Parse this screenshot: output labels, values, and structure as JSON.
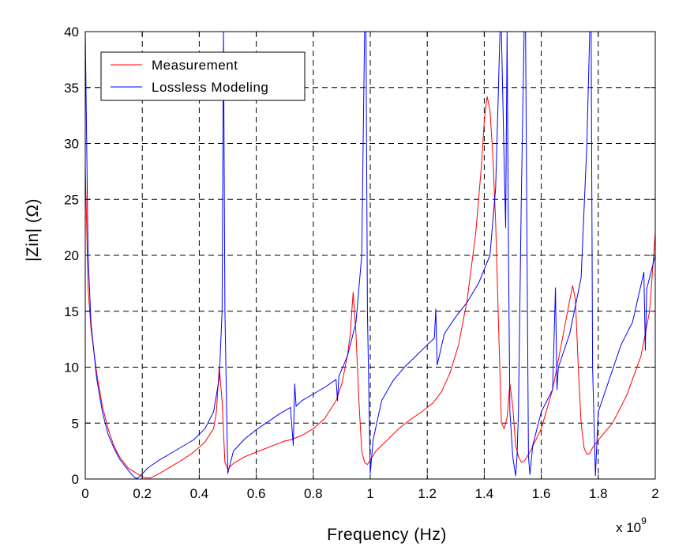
{
  "chart_data": {
    "type": "line",
    "title": "",
    "xlabel": "Frequency (Hz)",
    "ylabel": "|Zin| (Ω)",
    "x_multiplier_label": "x 10",
    "x_multiplier_exponent": "9",
    "xlim": [
      0,
      2
    ],
    "ylim": [
      0,
      40
    ],
    "x_ticks": [
      0,
      0.2,
      0.4,
      0.6,
      0.8,
      1,
      1.2,
      1.4,
      1.6,
      1.8,
      2
    ],
    "x_tick_labels": [
      "0",
      "0.2",
      "0.4",
      "0.6",
      "0.8",
      "1",
      "1.2",
      "1.4",
      "1.6",
      "1.8",
      "2"
    ],
    "y_ticks": [
      0,
      5,
      10,
      15,
      20,
      25,
      30,
      35,
      40
    ],
    "y_tick_labels": [
      "0",
      "5",
      "10",
      "15",
      "20",
      "25",
      "30",
      "35",
      "40"
    ],
    "grid": true,
    "legend_position": "top-left",
    "series": [
      {
        "name": "Measurement",
        "color": "#ff0000",
        "x": [
          0.0,
          0.01,
          0.02,
          0.04,
          0.06,
          0.08,
          0.1,
          0.12,
          0.15,
          0.18,
          0.21,
          0.23,
          0.26,
          0.3,
          0.34,
          0.38,
          0.42,
          0.45,
          0.46,
          0.47,
          0.48,
          0.49,
          0.5,
          0.52,
          0.56,
          0.6,
          0.64,
          0.68,
          0.7,
          0.72,
          0.76,
          0.8,
          0.84,
          0.88,
          0.9,
          0.92,
          0.93,
          0.94,
          0.95,
          0.96,
          0.97,
          0.98,
          0.99,
          1.0,
          1.02,
          1.06,
          1.1,
          1.14,
          1.18,
          1.2,
          1.22,
          1.25,
          1.28,
          1.31,
          1.34,
          1.37,
          1.39,
          1.4,
          1.41,
          1.42,
          1.43,
          1.44,
          1.45,
          1.46,
          1.47,
          1.48,
          1.49,
          1.5,
          1.51,
          1.52,
          1.53,
          1.54,
          1.56,
          1.6,
          1.64,
          1.67,
          1.7,
          1.71,
          1.72,
          1.73,
          1.74,
          1.75,
          1.76,
          1.77,
          1.78,
          1.8,
          1.85,
          1.9,
          1.95,
          1.98,
          2.0
        ],
        "values": [
          28,
          17,
          13.5,
          9.5,
          6.5,
          4.5,
          3,
          2,
          1,
          0.5,
          0.1,
          0.1,
          0.5,
          1.1,
          1.7,
          2.4,
          3.3,
          4.5,
          6,
          10,
          7,
          1.5,
          0.9,
          1.4,
          2,
          2.4,
          2.8,
          3.2,
          3.4,
          3.5,
          3.9,
          4.5,
          5.4,
          7,
          8.5,
          11,
          13,
          16.7,
          13,
          7,
          2.5,
          1.5,
          1.3,
          1.7,
          2.5,
          3.5,
          4.5,
          5.3,
          6,
          6.4,
          6.8,
          7.8,
          9.5,
          12,
          16,
          22,
          28,
          32,
          34.2,
          33,
          29,
          23,
          14,
          5,
          4.5,
          5.5,
          8.5,
          6.5,
          3,
          2,
          1.5,
          1.6,
          2.4,
          4.5,
          8,
          12,
          16,
          17.3,
          16,
          10,
          5,
          2.8,
          2.2,
          2.3,
          2.8,
          3.5,
          5,
          7.5,
          11,
          15,
          22
        ]
      },
      {
        "name": "Lossless Modeling",
        "color": "#0000ff",
        "x": [
          0.0,
          0.01,
          0.02,
          0.04,
          0.06,
          0.08,
          0.1,
          0.12,
          0.15,
          0.17,
          0.18,
          0.19,
          0.22,
          0.26,
          0.3,
          0.34,
          0.38,
          0.42,
          0.45,
          0.47,
          0.48,
          0.485,
          0.49,
          0.5,
          0.52,
          0.56,
          0.6,
          0.64,
          0.68,
          0.72,
          0.73,
          0.735,
          0.74,
          0.76,
          0.8,
          0.84,
          0.88,
          0.885,
          0.89,
          0.92,
          0.95,
          0.97,
          0.98,
          0.985,
          0.99,
          1.0,
          1.01,
          1.04,
          1.08,
          1.12,
          1.16,
          1.2,
          1.225,
          1.23,
          1.235,
          1.26,
          1.3,
          1.34,
          1.38,
          1.42,
          1.44,
          1.45,
          1.455,
          1.46,
          1.47,
          1.475,
          1.48,
          1.485,
          1.49,
          1.5,
          1.51,
          1.515,
          1.52,
          1.53,
          1.54,
          1.545,
          1.55,
          1.555,
          1.56,
          1.57,
          1.6,
          1.64,
          1.65,
          1.655,
          1.66,
          1.7,
          1.74,
          1.76,
          1.77,
          1.775,
          1.78,
          1.79,
          1.8,
          1.84,
          1.88,
          1.92,
          1.96,
          1.965,
          1.97,
          2.0
        ],
        "values": [
          40,
          20,
          14,
          9,
          6,
          4,
          2.8,
          1.8,
          0.8,
          0.2,
          0.05,
          0.2,
          1,
          1.7,
          2.3,
          2.9,
          3.5,
          4.5,
          6,
          9,
          15,
          40,
          15,
          0.5,
          2.5,
          3.6,
          4.4,
          5.1,
          5.8,
          6.4,
          3,
          8.5,
          6.5,
          7,
          7.6,
          8.2,
          8.9,
          7,
          9.2,
          11,
          14,
          20,
          40,
          40,
          15,
          0.5,
          3.5,
          7,
          8.8,
          10,
          11,
          12,
          12.6,
          15.2,
          10.2,
          13,
          14.5,
          15.8,
          17.5,
          20,
          26,
          35,
          40,
          40,
          28,
          22.5,
          40,
          20,
          6,
          2,
          0.3,
          2,
          6,
          25,
          40,
          40,
          20,
          2,
          0.4,
          3,
          6,
          8,
          17.1,
          8,
          10,
          13,
          18,
          30,
          40,
          40,
          10,
          0.3,
          6,
          9,
          12,
          14,
          18.5,
          11.5,
          17,
          20
        ]
      }
    ]
  }
}
